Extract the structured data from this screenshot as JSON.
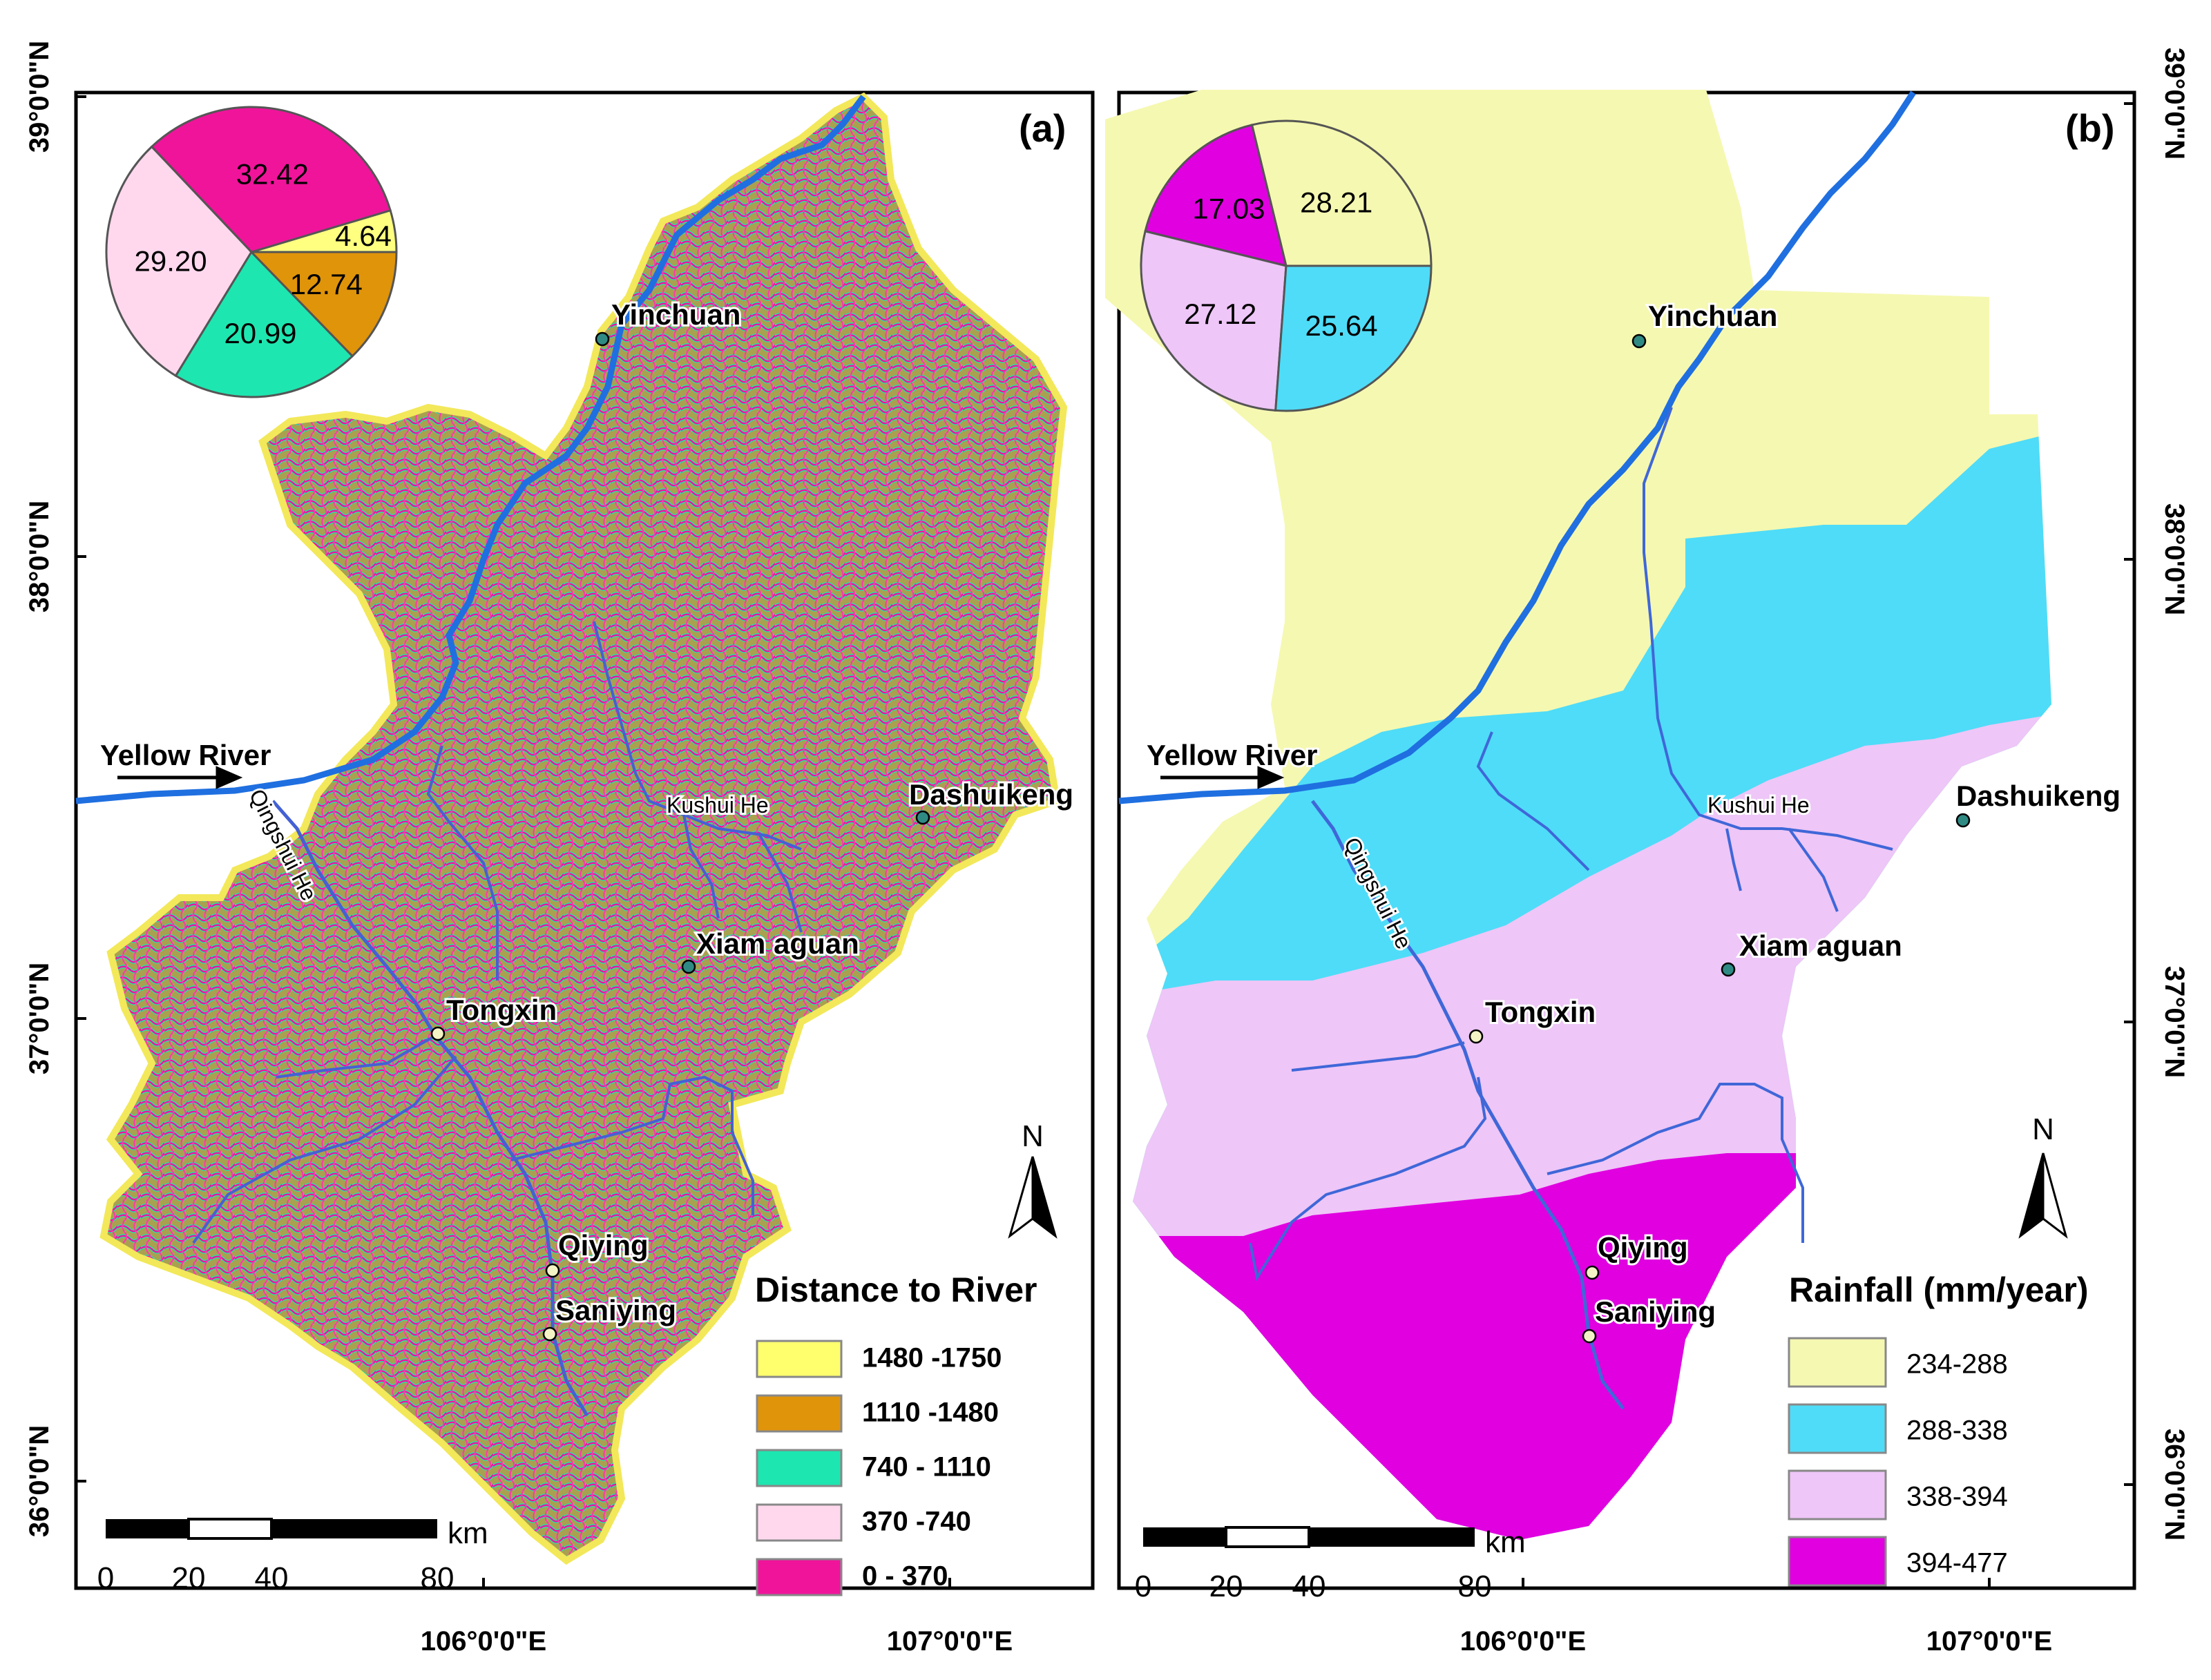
{
  "colors": {
    "river": "#1f6fe0",
    "stream": "#3f67d8",
    "frame": "#000000",
    "label_halo": "#ffffff",
    "city_dark": "#2f8a84",
    "city_light": "#f3f3c6"
  },
  "axis_labels": {
    "lat": [
      "39°0'0\"N",
      "38°0'0\"N",
      "37°0'0\"N",
      "36°0'0\"N"
    ],
    "lon": [
      "106°0'0\"E",
      "107°0'0\"E"
    ]
  },
  "scale_bar": {
    "ticks": [
      "0",
      "20",
      "40",
      "80"
    ],
    "unit": "km"
  },
  "north_label": "N",
  "place_labels": {
    "yinchuan": "Yinchuan",
    "dashuikeng": "Dashuikeng",
    "xiamaguan": "Xiam aguan",
    "tongxin": "Tongxin",
    "qiying": "Qiying",
    "saniying": "Saniying",
    "yellow_river": "Yellow River",
    "kushui_he": "Kushui He",
    "qingshui_he": "Qingshui He"
  },
  "panel_a": {
    "tag": "(a)",
    "legend_title": "Distance to River",
    "pie": [
      {
        "label": "4.64",
        "value": 4.64,
        "color": "#ffff80"
      },
      {
        "label": "32.42",
        "value": 32.42,
        "color": "#f0149b"
      },
      {
        "label": "29.20",
        "value": 29.2,
        "color": "#ffd8ee"
      },
      {
        "label": "20.99",
        "value": 20.99,
        "color": "#1ee6b0"
      },
      {
        "label": "12.74",
        "value": 12.74,
        "color": "#e0940a"
      }
    ],
    "legend": [
      {
        "label": "1480 -1750",
        "color": "#ffff6e"
      },
      {
        "label": "1110 -1480",
        "color": "#e0940a"
      },
      {
        "label": "740 - 1110",
        "color": "#1ee6b0"
      },
      {
        "label": "370 -740",
        "color": "#ffd8ee"
      },
      {
        "label": "0 - 370",
        "color": "#f0149b"
      }
    ]
  },
  "panel_b": {
    "tag": "(b)",
    "legend_title": "Rainfall (mm/year)",
    "pie": [
      {
        "label": "28.21",
        "value": 28.21,
        "color": "#f5f8b0"
      },
      {
        "label": "17.03",
        "value": 17.03,
        "color": "#e000e0"
      },
      {
        "label": "27.12",
        "value": 27.12,
        "color": "#eec6f7"
      },
      {
        "label": "25.64",
        "value": 25.64,
        "color": "#4fdcf8"
      }
    ],
    "legend": [
      {
        "label": "234-288",
        "color": "#f5f8b0"
      },
      {
        "label": "288-338",
        "color": "#4fdcf8"
      },
      {
        "label": "338-394",
        "color": "#eec6f7"
      },
      {
        "label": "394-477",
        "color": "#e000e0"
      }
    ]
  }
}
